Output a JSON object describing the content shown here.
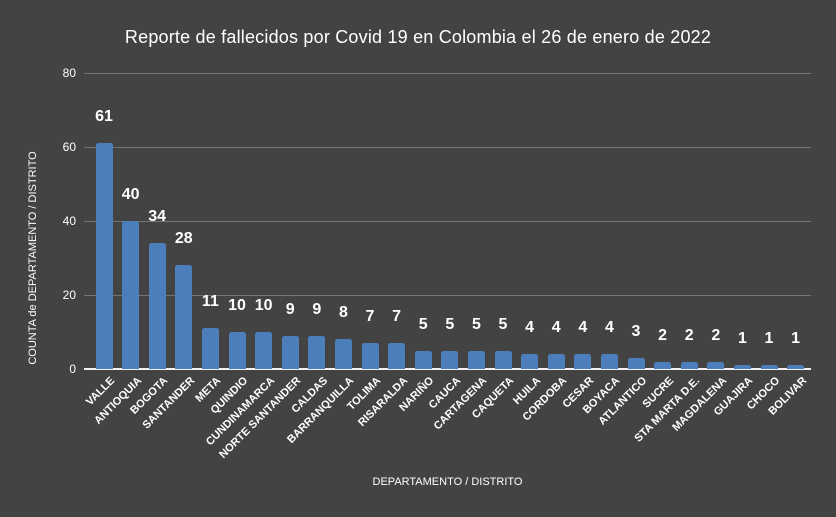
{
  "page": {
    "background_color": "#434343",
    "text_color": "#ffffff"
  },
  "chart_data": {
    "type": "bar",
    "title": "Reporte de fallecidos por Covid 19 en Colombia el 26 de enero de 2022",
    "xlabel": "DEPARTAMENTO / DISTRITO",
    "ylabel": "COUNTA de DEPARTAMENTO / DISTRITO",
    "categories": [
      "VALLE",
      "ANTIOQUIA",
      "BOGOTA",
      "SANTANDER",
      "META",
      "QUINDIO",
      "CUNDINAMARCA",
      "NORTE SANTANDER",
      "CALDAS",
      "BARRANQUILLA",
      "TOLIMA",
      "RISARALDA",
      "NARIÑO",
      "CAUCA",
      "CARTAGENA",
      "CAQUETA",
      "HUILA",
      "CORDOBA",
      "CESAR",
      "BOYACA",
      "ATLANTICO",
      "SUCRE",
      "STA MARTA D.E.",
      "MAGDALENA",
      "GUAJIRA",
      "CHOCO",
      "BOLIVAR"
    ],
    "values": [
      61,
      40,
      34,
      28,
      11,
      10,
      10,
      9,
      9,
      8,
      7,
      7,
      5,
      5,
      5,
      5,
      4,
      4,
      4,
      4,
      3,
      2,
      2,
      2,
      1,
      1,
      1
    ],
    "ylim": [
      0,
      80
    ],
    "yticks": [
      0,
      20,
      40,
      60,
      80
    ],
    "grid": true,
    "legend": "none",
    "data_labels": true,
    "bar_color": "#4d7ebc",
    "gridline_color": "#757575",
    "axis_line_color": "#f2f2f2"
  }
}
